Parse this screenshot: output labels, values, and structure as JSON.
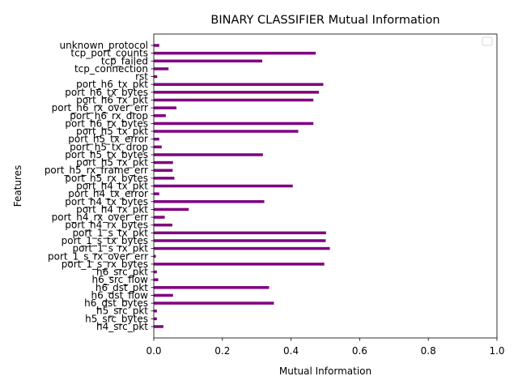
{
  "chart_data": {
    "type": "bar",
    "orientation": "horizontal",
    "title": "BINARY CLASSIFIER Mutual Information",
    "xlabel": "Mutual Information",
    "ylabel": "Features",
    "xlim": [
      0,
      1
    ],
    "xticks": [
      "0.0",
      "0.2",
      "0.4",
      "0.6",
      "0.8",
      "1.0"
    ],
    "bar_color": "#800080",
    "grid": false,
    "legend": "top-right (empty)",
    "categories": [
      "h4_src_pkt",
      "h5_src_bytes",
      "h5_src_pkt",
      "h6_dst_bytes",
      "h6_dst_flow",
      "h6_dst_pkt",
      "h6_src_flow",
      "h6_src_pkt",
      "port_1_s_rx_bytes",
      "port_1_s_rx_over_err",
      "port_1_s_rx_pkt",
      "port_1_s_tx_bytes",
      "port_1_s_tx_pkt",
      "port_h4_rx_bytes",
      "port_h4_rx_over_err",
      "port_h4_rx_pkt",
      "port_h4_tx_bytes",
      "port_h4_tx_error",
      "port_h4_tx_pkt",
      "port_h5_rx_bytes",
      "port_h5_rx_frame_err",
      "port_h5_rx_pkt",
      "port_h5_tx_bytes",
      "port_h5_tx_drop",
      "port_h5_tx_error",
      "port_h5_tx_pkt",
      "port_h6_rx_bytes",
      "port_h6_rx_drop",
      "port_h6_rx_over_err",
      "port_h6_rx_pkt",
      "port_h6_tx_bytes",
      "port_h6_tx_pkt",
      "rst",
      "tcp_connection",
      "tcp_failed",
      "tcp_port_counts",
      "unknown_protocol"
    ],
    "values": [
      0.028,
      0.009,
      0.009,
      0.35,
      0.056,
      0.336,
      0.013,
      0.009,
      0.497,
      0.006,
      0.513,
      0.501,
      0.502,
      0.054,
      0.032,
      0.102,
      0.322,
      0.016,
      0.405,
      0.06,
      0.055,
      0.056,
      0.318,
      0.023,
      0.016,
      0.421,
      0.465,
      0.035,
      0.066,
      0.465,
      0.481,
      0.494,
      0.01,
      0.043,
      0.316,
      0.472,
      0.016
    ]
  }
}
